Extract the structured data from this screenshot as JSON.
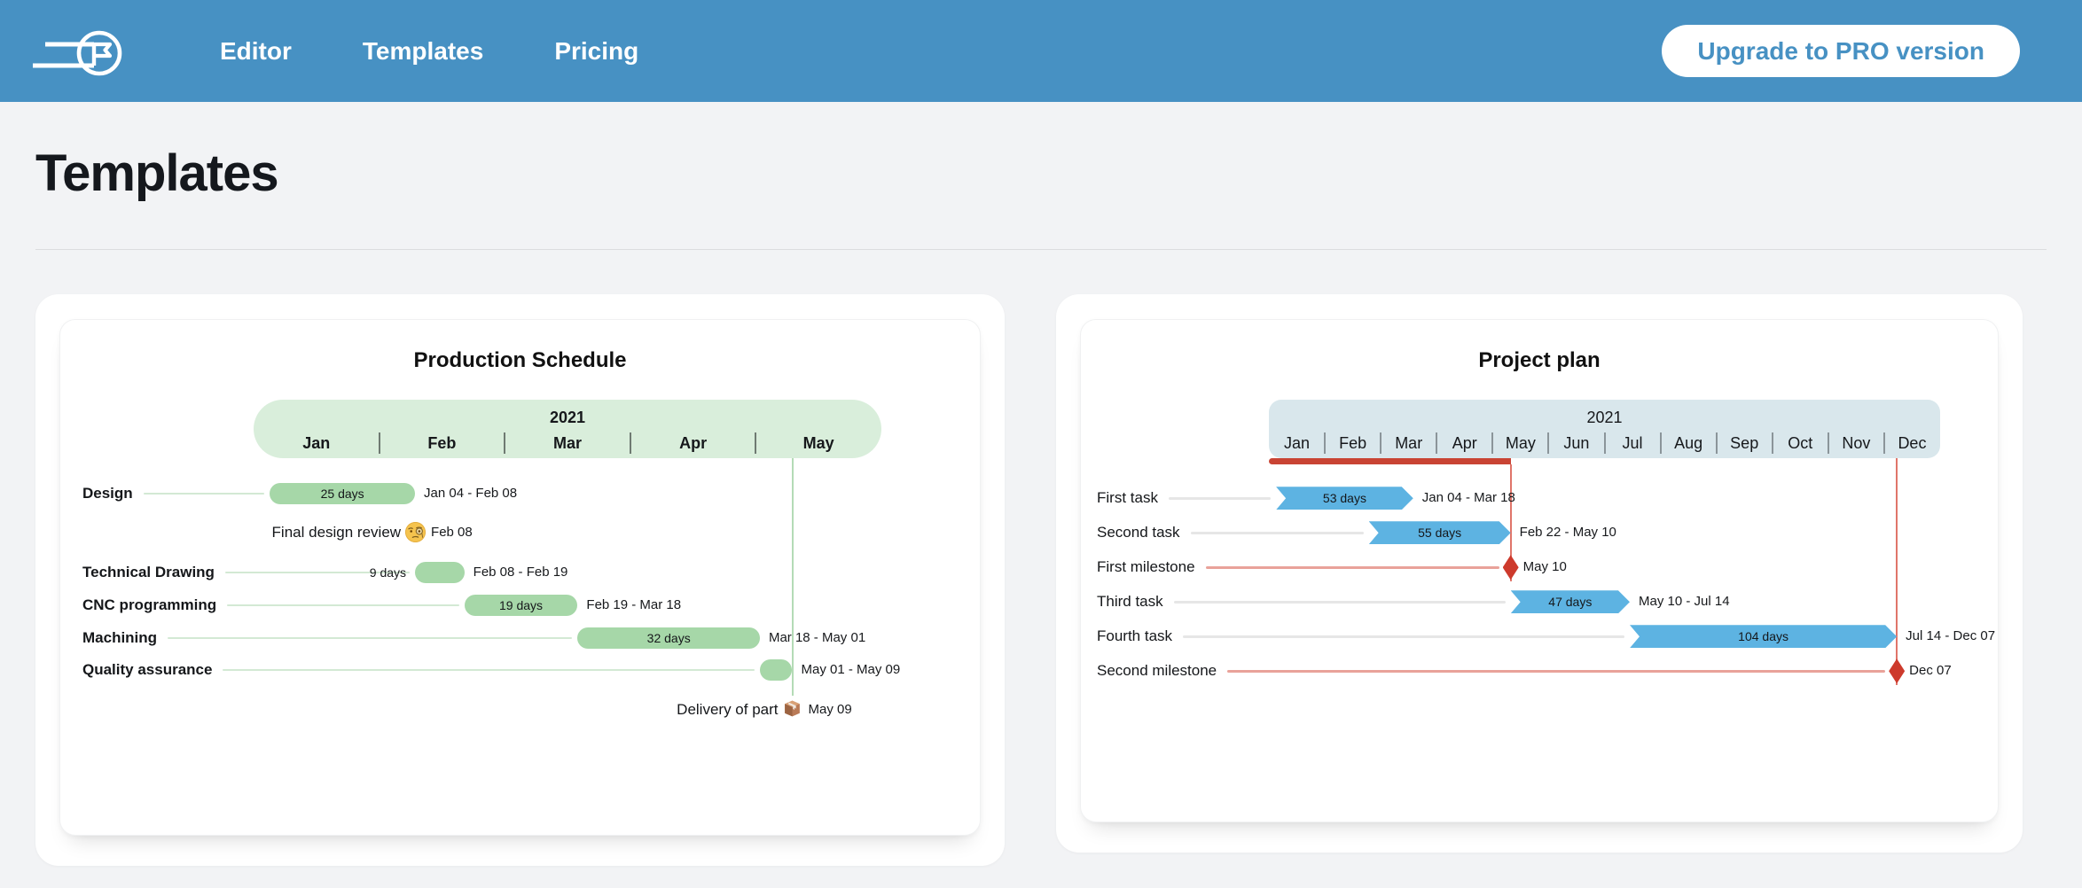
{
  "header": {
    "nav": [
      {
        "label": "Editor"
      },
      {
        "label": "Templates"
      },
      {
        "label": "Pricing"
      }
    ],
    "upgrade_button": "Upgrade to PRO version",
    "brand_color": "#4791c3"
  },
  "page": {
    "title": "Templates"
  },
  "charts": [
    {
      "type": "gantt",
      "title": "Production Schedule",
      "year": "2021",
      "months": [
        "Jan",
        "Feb",
        "Mar",
        "Apr",
        "May"
      ],
      "theme": {
        "header_bg": "#d9eedb",
        "bar": "#a6d7a8",
        "connector": "#d3e9d4",
        "vline": "#b4dbb6",
        "separator": "#6f7a72"
      },
      "rows": [
        {
          "type": "task",
          "label": "Design",
          "days": "25 days",
          "dates": "Jan 04 - Feb 08",
          "start": "Jan 04",
          "end": "Feb 08"
        },
        {
          "type": "milestone",
          "label": "Final design review",
          "emoji": "monocle-face",
          "date": "Feb 08",
          "at": "Feb 08"
        },
        {
          "type": "task",
          "label": "Technical Drawing",
          "days": "9 days",
          "dates": "Feb 08 - Feb 19",
          "start": "Feb 08",
          "end": "Feb 19"
        },
        {
          "type": "task",
          "label": "CNC programming",
          "days": "19 days",
          "dates": "Feb 19 - Mar 18",
          "start": "Feb 19",
          "end": "Mar 18"
        },
        {
          "type": "task",
          "label": "Machining",
          "days": "32 days",
          "dates": "Mar 18 - May 01",
          "start": "Mar 18",
          "end": "May 01"
        },
        {
          "type": "task",
          "label": "Quality assurance",
          "days": null,
          "dates": "May 01 - May 09",
          "start": "May 01",
          "end": "May 09"
        },
        {
          "type": "milestone",
          "label": "Delivery of part",
          "emoji": "package",
          "date": "May 09",
          "at": "May 09"
        }
      ],
      "vlines": [
        "May 09"
      ]
    },
    {
      "type": "gantt",
      "title": "Project plan",
      "year": "2021",
      "months": [
        "Jan",
        "Feb",
        "Mar",
        "Apr",
        "May",
        "Jun",
        "Jul",
        "Aug",
        "Sep",
        "Oct",
        "Nov",
        "Dec"
      ],
      "theme": {
        "header_bg": "#d9e7ec",
        "bar": "#5db3e2",
        "connector": "#e6e6e6",
        "vline": "#e0756a",
        "separator": "#8b959a",
        "milestone": "#cd3a2c",
        "milestone_connector": "#e9a29a",
        "underline": "#c94434"
      },
      "rows": [
        {
          "type": "task",
          "label": "First task",
          "days": "53 days",
          "dates": "Jan 04 - Mar 18",
          "start": "Jan 04",
          "end": "Mar 18"
        },
        {
          "type": "task",
          "label": "Second task",
          "days": "55 days",
          "dates": "Feb 22 - May 10",
          "start": "Feb 22",
          "end": "May 10"
        },
        {
          "type": "milestone",
          "label": "First milestone",
          "date": "May 10",
          "at": "May 10"
        },
        {
          "type": "task",
          "label": "Third task",
          "days": "47 days",
          "dates": "May 10 - Jul 14",
          "start": "May 10",
          "end": "Jul 14"
        },
        {
          "type": "task",
          "label": "Fourth task",
          "days": "104 days",
          "dates": "Jul 14 - Dec 07",
          "start": "Jul 14",
          "end": "Dec 07"
        },
        {
          "type": "milestone",
          "label": "Second milestone",
          "date": "Dec 07",
          "at": "Dec 07"
        }
      ],
      "vlines": [
        "May 10",
        "Dec 07"
      ],
      "underline_to": "May 10"
    }
  ]
}
